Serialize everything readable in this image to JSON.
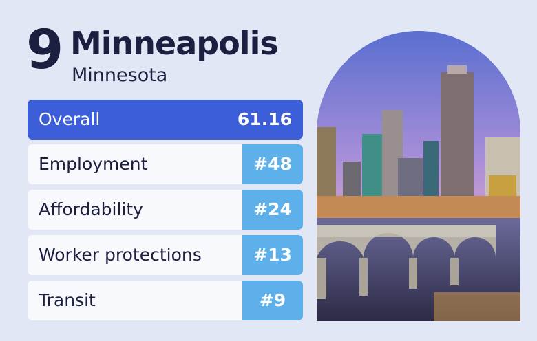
{
  "header": {
    "rank": 9,
    "city": "Minneapolis",
    "state": "Minnesota"
  },
  "overall": {
    "label": "Overall",
    "score": 61.16
  },
  "categories": [
    {
      "label": "Employment",
      "rank": "#48"
    },
    {
      "label": "Affordability",
      "rank": "#24"
    },
    {
      "label": "Worker protections",
      "rank": "#13"
    },
    {
      "label": "Transit",
      "rank": "#9"
    }
  ]
}
